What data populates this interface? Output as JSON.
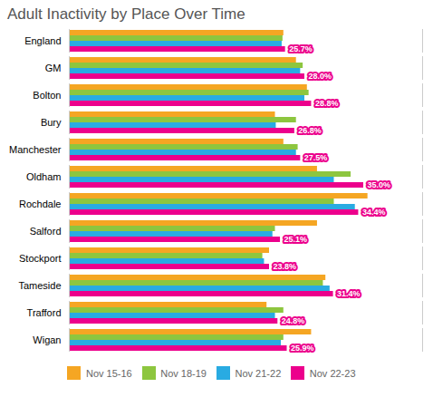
{
  "chart_data": {
    "type": "bar",
    "orientation": "horizontal",
    "title": "Adult Inactivity by Place Over Time",
    "categories": [
      "England",
      "GM",
      "Bolton",
      "Bury",
      "Manchester",
      "Oldham",
      "Rochdale",
      "Salford",
      "Stockport",
      "Tameside",
      "Trafford",
      "Wigan"
    ],
    "series": [
      {
        "name": "Nov 15-16",
        "color": "#F5A623",
        "values": [
          25.5,
          27.0,
          28.3,
          24.5,
          25.5,
          29.5,
          35.5,
          29.5,
          23.8,
          30.5,
          23.5,
          28.8
        ]
      },
      {
        "name": "Nov 18-19",
        "color": "#8DC63F",
        "values": [
          25.4,
          27.8,
          28.5,
          27.0,
          27.2,
          33.5,
          31.5,
          24.5,
          23.0,
          30.2,
          25.5,
          25.5
        ]
      },
      {
        "name": "Nov 21-22",
        "color": "#29ABE2",
        "values": [
          25.3,
          27.5,
          28.0,
          24.6,
          27.0,
          31.5,
          34.0,
          24.2,
          23.2,
          31.0,
          24.5,
          25.2
        ]
      },
      {
        "name": "Nov 22-23",
        "color": "#EC008C",
        "values": [
          25.7,
          28.0,
          28.8,
          26.8,
          27.5,
          35.0,
          34.4,
          25.1,
          23.8,
          31.4,
          24.8,
          25.9
        ],
        "data_labels": true,
        "value_labels": [
          "25.7%",
          "28.0%",
          "28.8%",
          "26.8%",
          "27.5%",
          "35.0%",
          "34.4%",
          "25.1%",
          "23.8%",
          "31.4%",
          "24.8%",
          "25.9%"
        ]
      }
    ],
    "xlim": [
      0,
      42
    ],
    "xticks": [],
    "grid": false,
    "legend": "bottom",
    "tick_labels": "y"
  }
}
